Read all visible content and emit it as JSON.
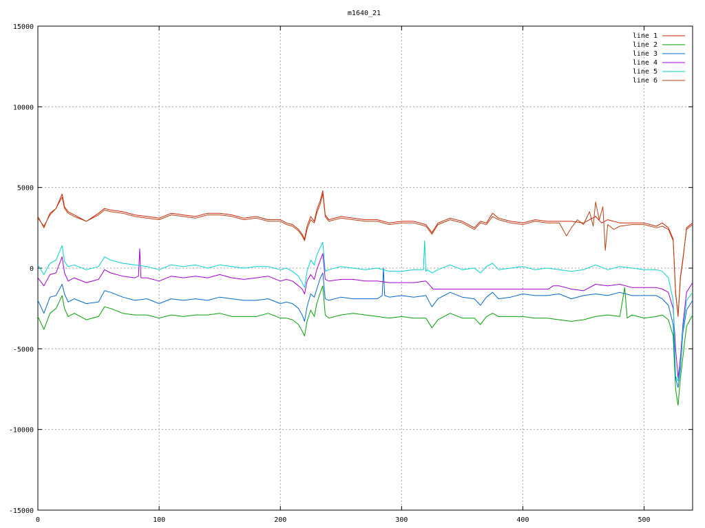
{
  "colors": {
    "line_1": "#cc2200",
    "line_2": "#00a000",
    "line_3": "#0066cc",
    "line_4": "#a000d0",
    "line_5": "#00d0d0",
    "line_6": "#b84010"
  },
  "chart_data": {
    "type": "line",
    "title": "m1640_21",
    "xlabel": "",
    "ylabel": "",
    "xlim": [
      0,
      540
    ],
    "ylim": [
      -15000,
      15000
    ],
    "x_ticks": [
      0,
      100,
      200,
      300,
      400,
      500
    ],
    "y_ticks": [
      -15000,
      -10000,
      -5000,
      0,
      5000,
      10000,
      15000
    ],
    "x_tick_labels": [
      "0",
      "100",
      "200",
      "300",
      "400",
      "500"
    ],
    "y_tick_labels": [
      "-15000",
      "-10000",
      "-5000",
      "0",
      "5000",
      "10000",
      "15000"
    ],
    "grid": true,
    "legend_position": "top-right",
    "series": [
      {
        "name": "line 1",
        "color": "#cc2200",
        "x": [
          0,
          5,
          10,
          15,
          20,
          22,
          25,
          30,
          40,
          50,
          55,
          60,
          70,
          80,
          90,
          100,
          110,
          120,
          130,
          140,
          150,
          160,
          170,
          180,
          190,
          200,
          205,
          210,
          215,
          218,
          220,
          222,
          225,
          228,
          230,
          233,
          235,
          237,
          240,
          250,
          260,
          270,
          280,
          290,
          300,
          310,
          320,
          325,
          330,
          340,
          350,
          360,
          365,
          370,
          375,
          380,
          390,
          400,
          410,
          420,
          430,
          440,
          450,
          455,
          460,
          465,
          470,
          480,
          490,
          500,
          510,
          515,
          520,
          524,
          526,
          528,
          530,
          532,
          535,
          540
        ],
        "y": [
          3200,
          2500,
          3400,
          3700,
          4600,
          3800,
          3500,
          3300,
          2900,
          3400,
          3700,
          3600,
          3500,
          3300,
          3200,
          3100,
          3400,
          3300,
          3200,
          3400,
          3400,
          3300,
          3100,
          3200,
          3000,
          3000,
          2800,
          2700,
          2400,
          2100,
          1800,
          2600,
          3200,
          2900,
          3600,
          4200,
          4800,
          3300,
          3000,
          3200,
          3100,
          3000,
          3000,
          2800,
          2900,
          2900,
          2700,
          2200,
          2800,
          3100,
          2900,
          2500,
          2900,
          2800,
          3400,
          3100,
          2900,
          2800,
          3000,
          2900,
          2900,
          2900,
          2800,
          3000,
          3200,
          2800,
          3000,
          2800,
          2800,
          2800,
          2600,
          2800,
          2500,
          1800,
          -1500,
          -3000,
          -600,
          500,
          2500,
          2800
        ]
      },
      {
        "name": "line 2",
        "color": "#00a000",
        "x": [
          0,
          5,
          10,
          15,
          20,
          22,
          25,
          30,
          40,
          50,
          55,
          60,
          70,
          80,
          90,
          100,
          110,
          120,
          130,
          140,
          150,
          160,
          170,
          180,
          190,
          200,
          205,
          210,
          215,
          218,
          220,
          222,
          225,
          228,
          230,
          233,
          235,
          237,
          240,
          250,
          260,
          270,
          280,
          290,
          300,
          310,
          320,
          325,
          330,
          340,
          350,
          360,
          365,
          370,
          375,
          380,
          390,
          400,
          410,
          420,
          430,
          440,
          450,
          460,
          470,
          480,
          484,
          486,
          490,
          500,
          510,
          515,
          520,
          524,
          526,
          528,
          530,
          532,
          535,
          540
        ],
        "y": [
          -3000,
          -3800,
          -2800,
          -2500,
          -1700,
          -2500,
          -3000,
          -2800,
          -3200,
          -3000,
          -2400,
          -2500,
          -2800,
          -2900,
          -2900,
          -3100,
          -2900,
          -3000,
          -2900,
          -2900,
          -2800,
          -3000,
          -3000,
          -3000,
          -2800,
          -3100,
          -3100,
          -3200,
          -3500,
          -3900,
          -4200,
          -3300,
          -2600,
          -3000,
          -2200,
          -1500,
          -1100,
          -2900,
          -3100,
          -2900,
          -2800,
          -2900,
          -3000,
          -3100,
          -3000,
          -3100,
          -3100,
          -3700,
          -3200,
          -2800,
          -3100,
          -3100,
          -3500,
          -3000,
          -2800,
          -3000,
          -3000,
          -3000,
          -3100,
          -3100,
          -3200,
          -3300,
          -3200,
          -3000,
          -2900,
          -3000,
          -1200,
          -3100,
          -2900,
          -3100,
          -3000,
          -2900,
          -3200,
          -4200,
          -7500,
          -8500,
          -6800,
          -5500,
          -3600,
          -2900
        ]
      },
      {
        "name": "line 3",
        "color": "#0066cc",
        "x": [
          0,
          5,
          10,
          15,
          20,
          22,
          25,
          30,
          40,
          50,
          55,
          60,
          70,
          80,
          90,
          100,
          110,
          120,
          130,
          140,
          150,
          160,
          170,
          180,
          190,
          200,
          205,
          210,
          215,
          218,
          220,
          222,
          225,
          228,
          230,
          233,
          235,
          237,
          240,
          250,
          260,
          270,
          280,
          284,
          285,
          286,
          290,
          300,
          310,
          320,
          325,
          330,
          340,
          350,
          360,
          365,
          370,
          375,
          380,
          390,
          400,
          410,
          420,
          430,
          440,
          450,
          460,
          470,
          480,
          490,
          500,
          510,
          515,
          520,
          524,
          526,
          528,
          530,
          532,
          535,
          540
        ],
        "y": [
          -2000,
          -2800,
          -1800,
          -1700,
          -1000,
          -1600,
          -2100,
          -1900,
          -2200,
          -2100,
          -1400,
          -1500,
          -1800,
          -2000,
          -1900,
          -2200,
          -1900,
          -2000,
          -1900,
          -2000,
          -1800,
          -1900,
          -2000,
          -2000,
          -1900,
          -2200,
          -2100,
          -2200,
          -2500,
          -2900,
          -3300,
          -2400,
          -1600,
          -1800,
          -1300,
          -600,
          -300,
          -1900,
          -2000,
          -1800,
          -1900,
          -1900,
          -1900,
          -1700,
          0,
          -1700,
          -1800,
          -1700,
          -1800,
          -1700,
          -2400,
          -1900,
          -1500,
          -1800,
          -1900,
          -2300,
          -1800,
          -1500,
          -1900,
          -1800,
          -1600,
          -1700,
          -1700,
          -1600,
          -1900,
          -1700,
          -1600,
          -1700,
          -1500,
          -1700,
          -1700,
          -1700,
          -1900,
          -2300,
          -3500,
          -6800,
          -7400,
          -6200,
          -4000,
          -2600,
          -2000
        ]
      },
      {
        "name": "line 4",
        "color": "#a000d0",
        "x": [
          0,
          5,
          10,
          15,
          20,
          22,
          25,
          30,
          40,
          50,
          55,
          60,
          70,
          80,
          83,
          84,
          85,
          90,
          100,
          110,
          120,
          130,
          140,
          150,
          160,
          170,
          180,
          190,
          200,
          205,
          210,
          215,
          218,
          220,
          222,
          225,
          228,
          230,
          233,
          235,
          237,
          240,
          250,
          260,
          270,
          280,
          290,
          300,
          310,
          320,
          326,
          330,
          345,
          370,
          400,
          421,
          425,
          430,
          440,
          450,
          460,
          470,
          480,
          490,
          500,
          510,
          515,
          520,
          524,
          526,
          528,
          530,
          532,
          535,
          540
        ],
        "y": [
          -600,
          -1100,
          -400,
          -300,
          700,
          -300,
          -800,
          -600,
          -900,
          -700,
          -100,
          -300,
          -500,
          -600,
          -500,
          1200,
          -600,
          -600,
          -800,
          -500,
          -600,
          -500,
          -600,
          -400,
          -600,
          -700,
          -600,
          -500,
          -800,
          -700,
          -800,
          -1100,
          -1300,
          -1600,
          -800,
          -400,
          -700,
          -100,
          500,
          900,
          -700,
          -800,
          -700,
          -700,
          -800,
          -800,
          -900,
          -900,
          -900,
          -800,
          -1300,
          -1300,
          -1300,
          -1300,
          -1300,
          -1300,
          -1100,
          -1100,
          -1300,
          -1400,
          -1000,
          -1100,
          -1000,
          -1200,
          -1200,
          -1200,
          -1300,
          -1500,
          -2500,
          -5000,
          -6800,
          -5500,
          -3500,
          -1500,
          -900
        ]
      },
      {
        "name": "line 5",
        "color": "#00d0d0",
        "x": [
          0,
          5,
          10,
          15,
          20,
          22,
          25,
          30,
          40,
          50,
          55,
          60,
          70,
          80,
          90,
          100,
          110,
          120,
          130,
          140,
          150,
          160,
          170,
          180,
          190,
          200,
          205,
          210,
          215,
          218,
          220,
          222,
          225,
          228,
          230,
          233,
          235,
          237,
          240,
          250,
          260,
          270,
          280,
          290,
          300,
          310,
          318,
          319,
          320,
          321,
          325,
          330,
          340,
          350,
          360,
          365,
          370,
          375,
          380,
          390,
          400,
          410,
          420,
          430,
          440,
          450,
          460,
          470,
          480,
          490,
          500,
          510,
          515,
          520,
          524,
          526,
          528,
          530,
          532,
          535,
          540
        ],
        "y": [
          200,
          -400,
          300,
          500,
          1400,
          400,
          100,
          200,
          -100,
          100,
          700,
          500,
          300,
          200,
          100,
          -100,
          200,
          100,
          200,
          0,
          200,
          100,
          0,
          100,
          100,
          -100,
          0,
          -200,
          -500,
          -900,
          -1200,
          -200,
          500,
          200,
          800,
          1300,
          1600,
          -200,
          -100,
          100,
          0,
          -100,
          0,
          -200,
          -200,
          -100,
          -100,
          1700,
          -200,
          -100,
          -300,
          -100,
          200,
          -100,
          0,
          -300,
          100,
          300,
          -100,
          0,
          100,
          -100,
          0,
          -100,
          -200,
          -100,
          200,
          -100,
          100,
          0,
          -100,
          -100,
          -200,
          -600,
          -2000,
          -6700,
          -7000,
          -6000,
          -3800,
          -2000,
          -1500
        ]
      },
      {
        "name": "line 6",
        "color": "#b84010",
        "x": [
          0,
          5,
          10,
          15,
          20,
          22,
          25,
          30,
          40,
          50,
          55,
          60,
          70,
          80,
          90,
          100,
          110,
          120,
          130,
          140,
          150,
          160,
          170,
          180,
          190,
          200,
          205,
          210,
          215,
          218,
          220,
          222,
          225,
          228,
          230,
          233,
          235,
          237,
          240,
          250,
          260,
          270,
          280,
          290,
          300,
          310,
          320,
          325,
          330,
          340,
          350,
          360,
          365,
          370,
          375,
          380,
          390,
          400,
          410,
          420,
          430,
          436,
          440,
          445,
          450,
          455,
          458,
          460,
          463,
          466,
          468,
          470,
          475,
          480,
          490,
          500,
          510,
          515,
          520,
          524,
          526,
          528,
          530,
          532,
          535,
          540
        ],
        "y": [
          3100,
          2600,
          3300,
          3700,
          4400,
          3700,
          3400,
          3200,
          2900,
          3300,
          3600,
          3500,
          3400,
          3200,
          3100,
          3000,
          3300,
          3200,
          3100,
          3300,
          3300,
          3200,
          3000,
          3100,
          2900,
          2900,
          2700,
          2600,
          2300,
          2000,
          1700,
          2400,
          3000,
          2800,
          3400,
          4000,
          4600,
          3200,
          2900,
          3100,
          3000,
          2900,
          2900,
          2700,
          2800,
          2800,
          2600,
          2100,
          2700,
          3000,
          2800,
          2400,
          2800,
          2700,
          3200,
          3000,
          2800,
          2700,
          2900,
          2800,
          2800,
          2000,
          2500,
          3000,
          2700,
          3500,
          2600,
          4100,
          3000,
          3800,
          1100,
          2700,
          2400,
          2600,
          2700,
          2700,
          2500,
          2600,
          2400,
          1700,
          -1600,
          -2900,
          -500,
          600,
          2400,
          2700
        ]
      }
    ]
  }
}
